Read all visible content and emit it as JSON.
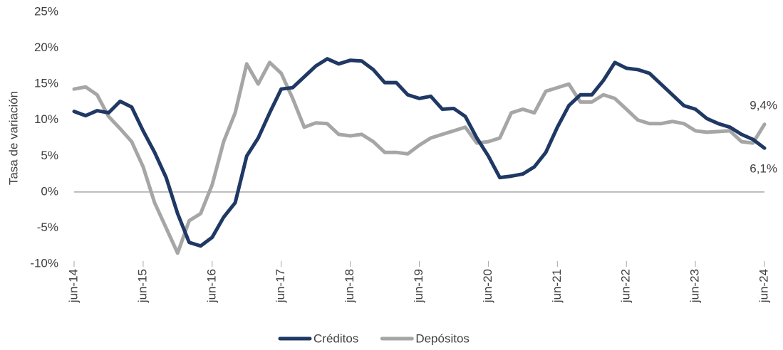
{
  "chart_data": {
    "type": "line",
    "y_label": "Tasa de variación",
    "categories": [
      "jun-14",
      null,
      null,
      null,
      null,
      null,
      "jun-15",
      null,
      null,
      null,
      null,
      null,
      "jun-16",
      null,
      null,
      null,
      null,
      null,
      "jun-17",
      null,
      null,
      null,
      null,
      null,
      "jun-18",
      null,
      null,
      null,
      null,
      null,
      "jun-19",
      null,
      null,
      null,
      null,
      null,
      "jun-20",
      null,
      null,
      null,
      null,
      null,
      "jun-21",
      null,
      null,
      null,
      null,
      null,
      "jun-22",
      null,
      null,
      null,
      null,
      null,
      "jun-23",
      null,
      null,
      null,
      null,
      null,
      "jun-24"
    ],
    "series": [
      {
        "name": "Créditos",
        "color": "#1f3864",
        "values": [
          11.2,
          10.6,
          11.3,
          11.0,
          12.6,
          11.8,
          8.5,
          5.5,
          2,
          -3,
          -7,
          -7.5,
          -6.3,
          -3.5,
          -1.5,
          5,
          7.5,
          11,
          14.3,
          14.5,
          16,
          17.5,
          18.5,
          17.8,
          18.3,
          18.2,
          17,
          15.2,
          15.2,
          13.5,
          13,
          13.3,
          11.5,
          11.6,
          10.5,
          7.5,
          5,
          2,
          2.2,
          2.5,
          3.5,
          5.5,
          9,
          12,
          13.5,
          13.5,
          15.5,
          18,
          17.2,
          17,
          16.5,
          15,
          13.5,
          12,
          11.5,
          10.2,
          9.5,
          9,
          8,
          7.3,
          6.1
        ],
        "value_labels": [
          null,
          null,
          null,
          null,
          null,
          null,
          null,
          null,
          null,
          null,
          null,
          null,
          null,
          null,
          null,
          null,
          null,
          null,
          null,
          null,
          null,
          null,
          null,
          null,
          null,
          null,
          null,
          null,
          null,
          null,
          null,
          null,
          null,
          null,
          null,
          null,
          null,
          null,
          null,
          null,
          null,
          null,
          null,
          null,
          null,
          null,
          null,
          null,
          null,
          null,
          null,
          null,
          null,
          null,
          null,
          null,
          null,
          null,
          null,
          null,
          "6,1%"
        ]
      },
      {
        "name": "Depósitos",
        "color": "#a6a6a6",
        "values": [
          14.3,
          14.6,
          13.5,
          10.5,
          8.8,
          7,
          3.5,
          -1.5,
          -5,
          -8.5,
          -4,
          -3,
          1,
          7,
          11,
          17.8,
          15,
          18,
          16.5,
          13,
          9,
          9.6,
          9.5,
          8,
          7.8,
          8,
          7,
          5.5,
          5.5,
          5.3,
          6.5,
          7.5,
          8,
          8.5,
          9,
          6.8,
          7,
          7.5,
          11,
          11.5,
          11,
          14,
          14.5,
          15,
          12.5,
          12.5,
          13.5,
          13,
          11.5,
          10,
          9.5,
          9.5,
          9.8,
          9.5,
          8.5,
          8.3,
          8.4,
          8.5,
          7,
          6.8,
          9.4
        ],
        "value_labels": [
          null,
          null,
          null,
          null,
          null,
          null,
          null,
          null,
          null,
          null,
          null,
          null,
          null,
          null,
          null,
          null,
          null,
          null,
          null,
          null,
          null,
          null,
          null,
          null,
          null,
          null,
          null,
          null,
          null,
          null,
          null,
          null,
          null,
          null,
          null,
          null,
          null,
          null,
          null,
          null,
          null,
          null,
          null,
          null,
          null,
          null,
          null,
          null,
          null,
          null,
          null,
          null,
          null,
          null,
          null,
          null,
          null,
          null,
          null,
          null,
          "9,4%"
        ]
      }
    ],
    "ylim": [
      -10,
      25
    ],
    "yticks": [
      {
        "value": -10,
        "label": "-10%"
      },
      {
        "value": -5,
        "label": "-5%"
      },
      {
        "value": 0,
        "label": "0%"
      },
      {
        "value": 5,
        "label": "5%"
      },
      {
        "value": 10,
        "label": "10%"
      },
      {
        "value": 15,
        "label": "15%"
      },
      {
        "value": 20,
        "label": "20%"
      },
      {
        "value": 25,
        "label": "25%"
      }
    ],
    "legend": "bottom"
  }
}
